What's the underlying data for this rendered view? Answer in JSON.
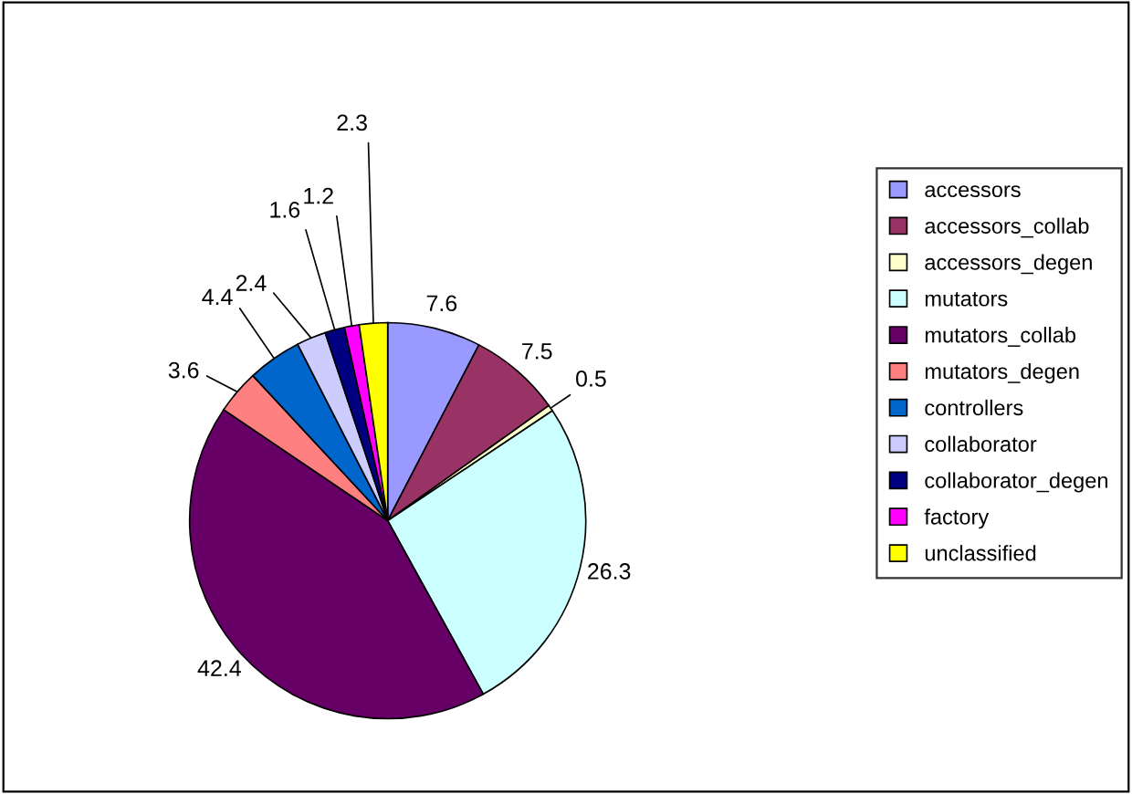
{
  "chart_data": {
    "type": "pie",
    "categories": [
      "accessors",
      "accessors_collab",
      "accessors_degen",
      "mutators",
      "mutators_collab",
      "mutators_degen",
      "controllers",
      "collaborator",
      "collaborator_degen",
      "factory",
      "unclassified"
    ],
    "values": [
      7.6,
      7.5,
      0.5,
      26.3,
      42.4,
      3.6,
      4.4,
      2.4,
      1.6,
      1.2,
      2.3
    ],
    "colors": [
      "#9999ff",
      "#993366",
      "#ffffcc",
      "#ccffff",
      "#660066",
      "#ff8080",
      "#0066cc",
      "#ccccff",
      "#000080",
      "#ff00ff",
      "#ffff00"
    ],
    "data_labels": true,
    "legend": "right"
  }
}
